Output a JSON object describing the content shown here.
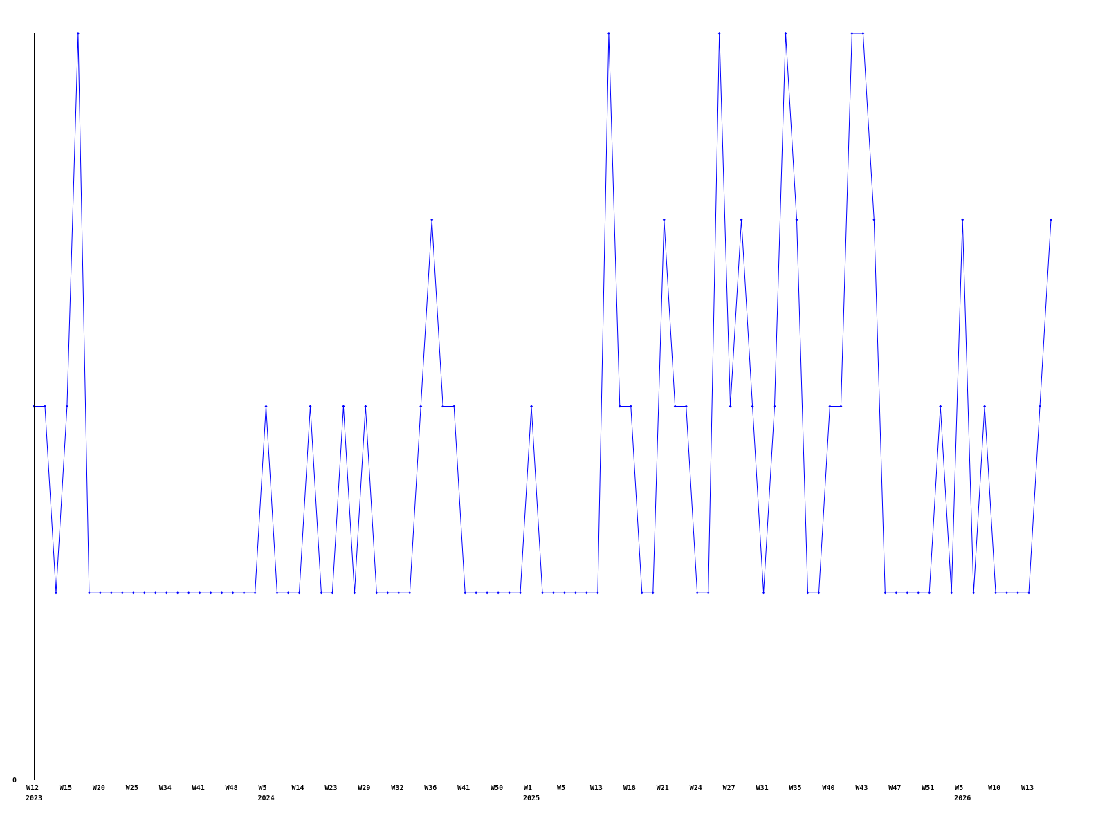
{
  "chart_data": {
    "type": "line",
    "title": "",
    "xlabel": "",
    "ylabel": "",
    "ylim": [
      0,
      4
    ],
    "y_ticks": [
      "0"
    ],
    "grid": false,
    "line_color": "#0000ff",
    "axis_color": "#000000",
    "values": [
      2,
      2,
      1,
      2,
      4,
      1,
      1,
      1,
      1,
      1,
      1,
      1,
      1,
      1,
      1,
      1,
      1,
      1,
      1,
      1,
      1,
      2,
      1,
      1,
      1,
      2,
      1,
      1,
      2,
      1,
      2,
      1,
      1,
      1,
      1,
      2,
      3,
      2,
      2,
      1,
      1,
      1,
      1,
      1,
      1,
      2,
      1,
      1,
      1,
      1,
      1,
      1,
      4,
      2,
      2,
      1,
      1,
      3,
      2,
      2,
      1,
      1,
      4,
      2,
      3,
      2,
      1,
      2,
      4,
      3,
      1,
      1,
      2,
      2,
      4,
      4,
      3,
      1,
      1,
      1,
      1,
      1,
      2,
      1,
      3,
      1,
      2,
      1,
      1,
      1,
      1,
      2,
      3
    ],
    "x_tick_every": 3,
    "x_ticks": [
      "W12",
      "W15",
      "W20",
      "W25",
      "W34",
      "W41",
      "W48",
      "W5",
      "W14",
      "W23",
      "W29",
      "W32",
      "W36",
      "W41",
      "W50",
      "W1",
      "W5",
      "W13",
      "W18",
      "W21",
      "W24",
      "W27",
      "W31",
      "W35",
      "W40",
      "W43",
      "W47",
      "W51",
      "W5",
      "W10",
      "W13"
    ],
    "year_labels": [
      {
        "label": "2023",
        "at_tick": 0
      },
      {
        "label": "2024",
        "at_tick": 7
      },
      {
        "label": "2025",
        "at_tick": 15
      },
      {
        "label": "2026",
        "at_tick": 28
      }
    ]
  }
}
